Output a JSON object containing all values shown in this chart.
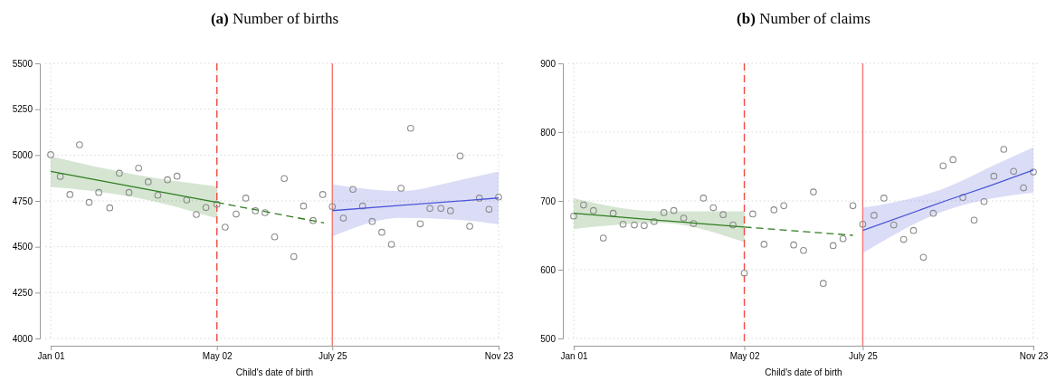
{
  "chart_data": [
    {
      "type": "scatter",
      "title": "(a) Number of births",
      "xlabel": "Child's date of birth",
      "grid": true,
      "xlim": [
        "--01-01",
        "--11-23"
      ],
      "xticks": [
        {
          "value": "--01-01",
          "label": "Jan 01"
        },
        {
          "value": "--05-02",
          "label": "May 02"
        },
        {
          "value": "--07-25",
          "label": "July 25"
        },
        {
          "value": "--11-23",
          "label": "Nov 23"
        }
      ],
      "ylim": [
        4000,
        5500
      ],
      "yticks": [
        4000,
        4250,
        4500,
        4750,
        5000,
        5250,
        5500
      ],
      "x": [
        "--01-01",
        "--01-08",
        "--01-15",
        "--01-22",
        "--01-29",
        "--02-05",
        "--02-13",
        "--02-20",
        "--02-27",
        "--03-06",
        "--03-13",
        "--03-20",
        "--03-27",
        "--04-03",
        "--04-10",
        "--04-17",
        "--04-24",
        "--05-02",
        "--05-08",
        "--05-16",
        "--05-23",
        "--05-30",
        "--06-06",
        "--06-13",
        "--06-20",
        "--06-27",
        "--07-04",
        "--07-11",
        "--07-18",
        "--07-25",
        "--08-02",
        "--08-09",
        "--08-16",
        "--08-23",
        "--08-30",
        "--09-06",
        "--09-13",
        "--09-20",
        "--09-27",
        "--10-04",
        "--10-12",
        "--10-19",
        "--10-26",
        "--11-02",
        "--11-09",
        "--11-16",
        "--11-23"
      ],
      "ref_lines": [
        {
          "axis": "x",
          "value": "--05-02",
          "color": "#ef4a40",
          "line_style": "dashed"
        },
        {
          "axis": "x",
          "value": "--07-25",
          "color": "#f07a70",
          "line_style": "solid"
        }
      ],
      "series": [
        {
          "color": "#8c8c8c",
          "marker": "circle",
          "values": [
            5002,
            4883,
            4785,
            5056,
            4742,
            4796,
            4712,
            4901,
            4796,
            4929,
            4854,
            4781,
            4865,
            4885,
            4755,
            4676,
            4714,
            4732,
            4607,
            4678,
            4765,
            4696,
            4686,
            4554,
            4872,
            4446,
            4722,
            4643,
            4785,
            4719,
            4656,
            4813,
            4722,
            4638,
            4579,
            4513,
            4819,
            5146,
            4625,
            4709,
            4709,
            4696,
            4995,
            4612,
            4765,
            4704,
            4771
          ]
        },
        {
          "type": "line",
          "color": "#2f7d1f",
          "line_style": "solid",
          "marker": "none",
          "x": [
            "--01-01",
            "--03-02",
            "--05-02"
          ],
          "values": [
            4911,
            4827,
            4742
          ],
          "lower": [
            4826,
            4771,
            4655
          ],
          "upper": [
            4993,
            4896,
            4829
          ]
        },
        {
          "type": "line",
          "color": "#2f7d1f",
          "line_style": "dashed",
          "marker": "none",
          "x": [
            "--05-02",
            "--07-19"
          ],
          "values": [
            4742,
            4630
          ]
        },
        {
          "type": "line",
          "color": "#4a56d6",
          "line_style": "solid",
          "marker": "none",
          "x": [
            "--07-25",
            "--09-13",
            "--10-23",
            "--11-23"
          ],
          "values": [
            4697,
            4726,
            4748,
            4766
          ],
          "lower": [
            4556,
            4658,
            4648,
            4623
          ],
          "upper": [
            4840,
            4804,
            4859,
            4910
          ]
        }
      ]
    },
    {
      "type": "scatter",
      "title": "(b) Number of claims",
      "xlabel": "Child's date of birth",
      "grid": true,
      "xlim": [
        "--01-01",
        "--11-23"
      ],
      "xticks": [
        {
          "value": "--01-01",
          "label": "Jan 01"
        },
        {
          "value": "--05-02",
          "label": "May 02"
        },
        {
          "value": "--07-25",
          "label": "July 25"
        },
        {
          "value": "--11-23",
          "label": "Nov 23"
        }
      ],
      "ylim": [
        500,
        900
      ],
      "yticks": [
        500,
        600,
        700,
        800,
        900
      ],
      "x": [
        "--01-01",
        "--01-08",
        "--01-15",
        "--01-22",
        "--01-29",
        "--02-05",
        "--02-13",
        "--02-20",
        "--02-27",
        "--03-06",
        "--03-13",
        "--03-20",
        "--03-27",
        "--04-03",
        "--04-10",
        "--04-17",
        "--04-24",
        "--05-02",
        "--05-08",
        "--05-16",
        "--05-23",
        "--05-30",
        "--06-06",
        "--06-13",
        "--06-20",
        "--06-27",
        "--07-04",
        "--07-11",
        "--07-18",
        "--07-25",
        "--08-02",
        "--08-09",
        "--08-16",
        "--08-23",
        "--08-30",
        "--09-06",
        "--09-13",
        "--09-20",
        "--09-27",
        "--10-04",
        "--10-12",
        "--10-19",
        "--10-26",
        "--11-02",
        "--11-09",
        "--11-16",
        "--11-23"
      ],
      "ref_lines": [
        {
          "axis": "x",
          "value": "--05-02",
          "color": "#ef4a40",
          "line_style": "dashed"
        },
        {
          "axis": "x",
          "value": "--07-25",
          "color": "#f07a70",
          "line_style": "solid"
        }
      ],
      "series": [
        {
          "color": "#8c8c8c",
          "marker": "circle",
          "values": [
            678,
            694,
            686,
            646,
            682,
            666,
            665,
            664,
            670,
            683,
            686,
            675,
            667,
            704,
            690,
            680,
            665,
            595,
            681,
            637,
            687,
            693,
            636,
            628,
            713,
            580,
            635,
            645,
            693,
            666,
            679,
            704,
            665,
            644,
            657,
            618,
            682,
            751,
            760,
            705,
            672,
            699,
            736,
            775,
            743,
            719,
            742
          ]
        },
        {
          "type": "line",
          "color": "#2f7d1f",
          "line_style": "solid",
          "marker": "none",
          "x": [
            "--01-01",
            "--03-02",
            "--05-02"
          ],
          "values": [
            682,
            672,
            662
          ],
          "lower": [
            659,
            668,
            640
          ],
          "upper": [
            704,
            685,
            685
          ]
        },
        {
          "type": "line",
          "color": "#2f7d1f",
          "line_style": "dashed",
          "marker": "none",
          "x": [
            "--05-02",
            "--07-18"
          ],
          "values": [
            662,
            650
          ]
        },
        {
          "type": "line",
          "color": "#4a56d6",
          "line_style": "solid",
          "marker": "none",
          "x": [
            "--07-25",
            "--09-23",
            "--10-23",
            "--11-23"
          ],
          "values": [
            657,
            701,
            722,
            745
          ],
          "lower": [
            624,
            687,
            703,
            712
          ],
          "upper": [
            690,
            720,
            749,
            778
          ]
        }
      ]
    }
  ]
}
